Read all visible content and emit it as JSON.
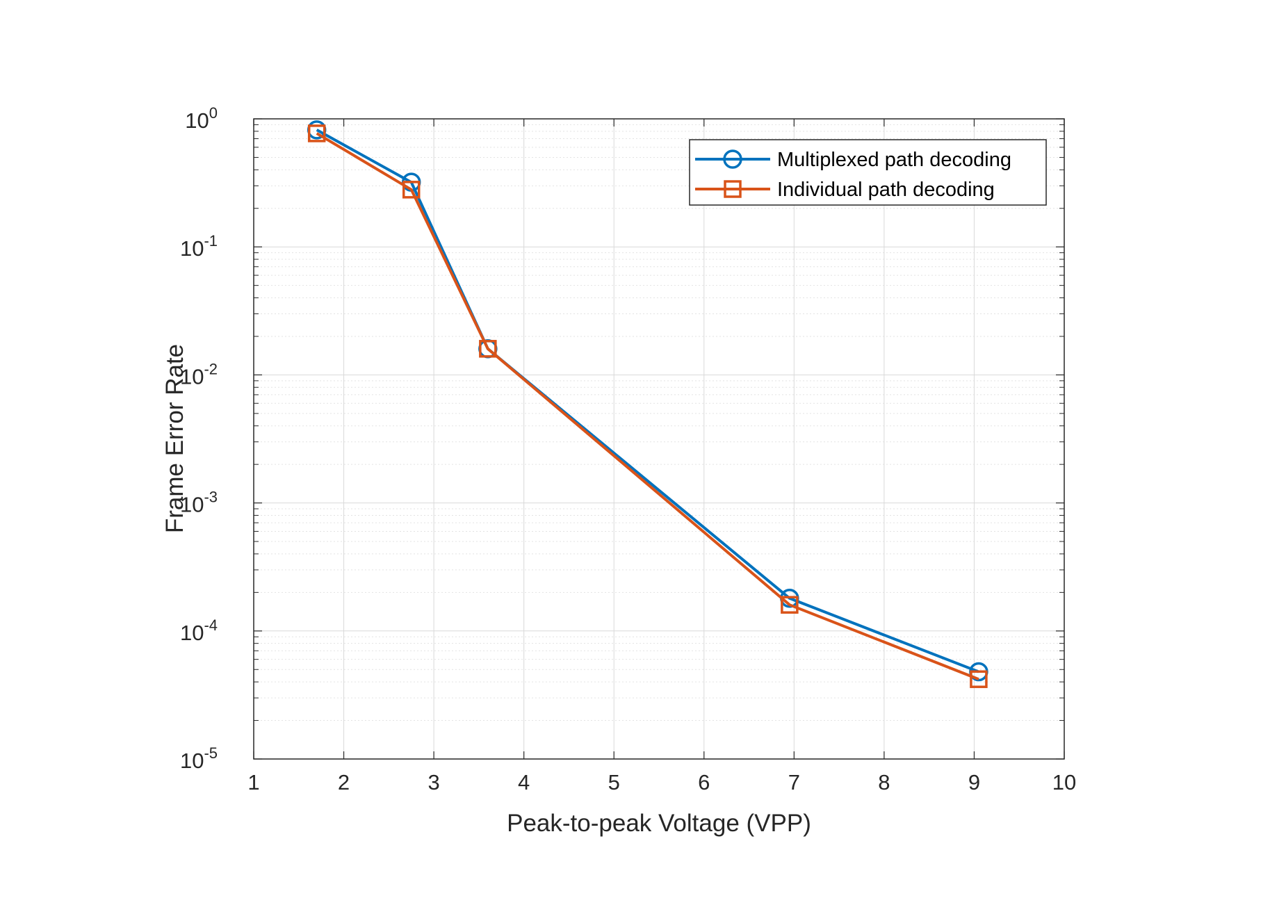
{
  "chart_data": {
    "type": "line",
    "title": "",
    "xlabel": "Peak-to-peak Voltage (VPP)",
    "ylabel": "Frame Error Rate",
    "xlim": [
      1,
      10
    ],
    "ylim": [
      1e-05,
      1
    ],
    "yscale": "log",
    "grid": true,
    "minor_grid": true,
    "legend_position": "top-right",
    "x_ticks": [
      "1",
      "2",
      "3",
      "4",
      "5",
      "6",
      "7",
      "8",
      "9",
      "10"
    ],
    "y_ticks": [
      {
        "base": "10",
        "exp": "-5"
      },
      {
        "base": "10",
        "exp": "-4"
      },
      {
        "base": "10",
        "exp": "-3"
      },
      {
        "base": "10",
        "exp": "-2"
      },
      {
        "base": "10",
        "exp": "-1"
      },
      {
        "base": "10",
        "exp": "0"
      }
    ],
    "series": [
      {
        "name": "Multiplexed path decoding",
        "color": "#0072BD",
        "marker": "circle",
        "x": [
          1.7,
          2.75,
          3.6,
          6.95,
          9.05
        ],
        "y": [
          0.82,
          0.32,
          0.016,
          0.00018,
          4.8e-05
        ]
      },
      {
        "name": "Individual path decoding",
        "color": "#D95319",
        "marker": "square",
        "x": [
          1.7,
          2.75,
          3.6,
          6.95,
          9.05
        ],
        "y": [
          0.77,
          0.28,
          0.016,
          0.00016,
          4.2e-05
        ]
      }
    ]
  }
}
